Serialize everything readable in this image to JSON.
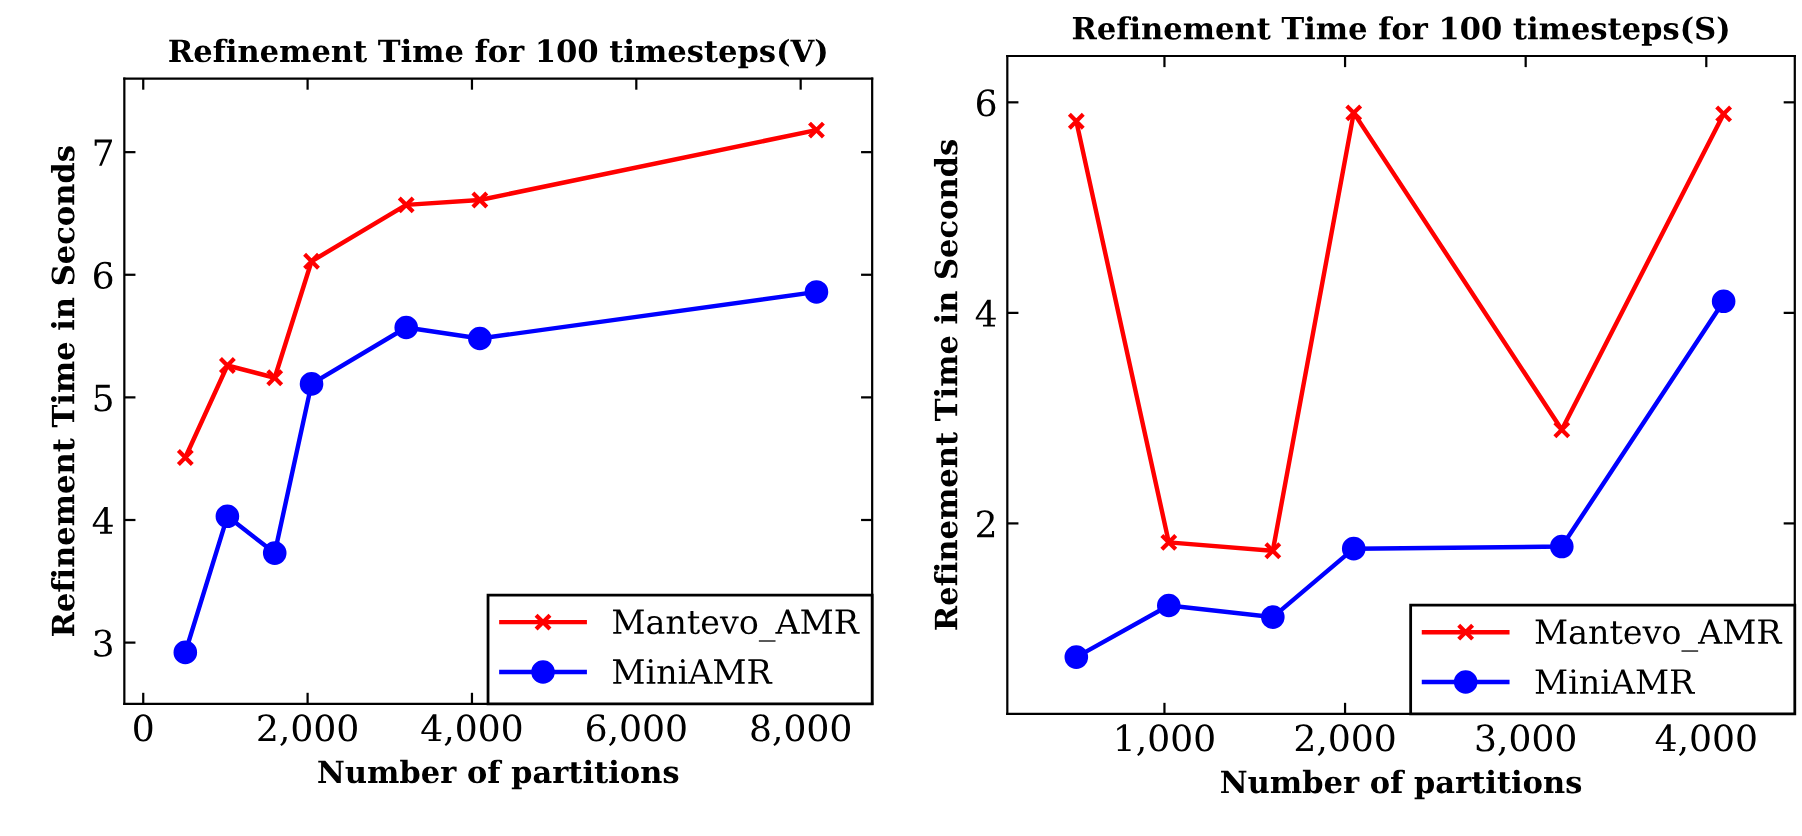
{
  "chart_data": [
    {
      "type": "line",
      "title": "Refinement Time for 100 timesteps(V)",
      "xlabel": "Number of partitions",
      "ylabel": "Refinement Time in Seconds",
      "x": [
        512,
        1024,
        1600,
        2048,
        3200,
        4096,
        8192
      ],
      "series": [
        {
          "name": "Mantevo_AMR",
          "color": "#ff0000",
          "marker": "cross",
          "values": [
            4.51,
            5.26,
            5.16,
            6.11,
            6.57,
            6.61,
            7.18
          ]
        },
        {
          "name": "MiniAMR",
          "color": "#0000ff",
          "marker": "circle",
          "values": [
            2.92,
            4.03,
            3.73,
            5.11,
            5.57,
            5.48,
            5.86
          ]
        }
      ],
      "xlim": [
        -230,
        8870
      ],
      "ylim": [
        2.5,
        7.6
      ],
      "xticks": [
        {
          "value": 0,
          "label": "0"
        },
        {
          "value": 2000,
          "label": "2,000"
        },
        {
          "value": 4000,
          "label": "4,000"
        },
        {
          "value": 6000,
          "label": "6,000"
        },
        {
          "value": 8000,
          "label": "8,000"
        }
      ],
      "yticks": [
        3,
        4,
        5,
        6,
        7
      ],
      "grid": false,
      "legend": "bottom right",
      "line_style": "solid"
    },
    {
      "type": "line",
      "title": "Refinement Time for 100 timesteps(S)",
      "xlabel": "Number of partitions",
      "ylabel": "Refinement Time in Seconds",
      "x": [
        512,
        1024,
        1600,
        2048,
        3200,
        4096
      ],
      "series": [
        {
          "name": "Mantevo_AMR",
          "color": "#ff0000",
          "marker": "cross",
          "values": [
            5.82,
            1.82,
            1.74,
            5.9,
            2.89,
            5.89
          ]
        },
        {
          "name": "MiniAMR",
          "color": "#0000ff",
          "marker": "circle",
          "values": [
            0.73,
            1.22,
            1.11,
            1.76,
            1.78,
            4.11
          ]
        }
      ],
      "xlim": [
        130,
        4490
      ],
      "ylim": [
        0.19,
        6.44
      ],
      "xticks": [
        {
          "value": 1000,
          "label": "1,000"
        },
        {
          "value": 2000,
          "label": "2,000"
        },
        {
          "value": 3000,
          "label": "3,000"
        },
        {
          "value": 4000,
          "label": "4,000"
        }
      ],
      "yticks": [
        2,
        4,
        6
      ],
      "grid": false,
      "legend": "bottom right",
      "line_style": "solid"
    }
  ]
}
